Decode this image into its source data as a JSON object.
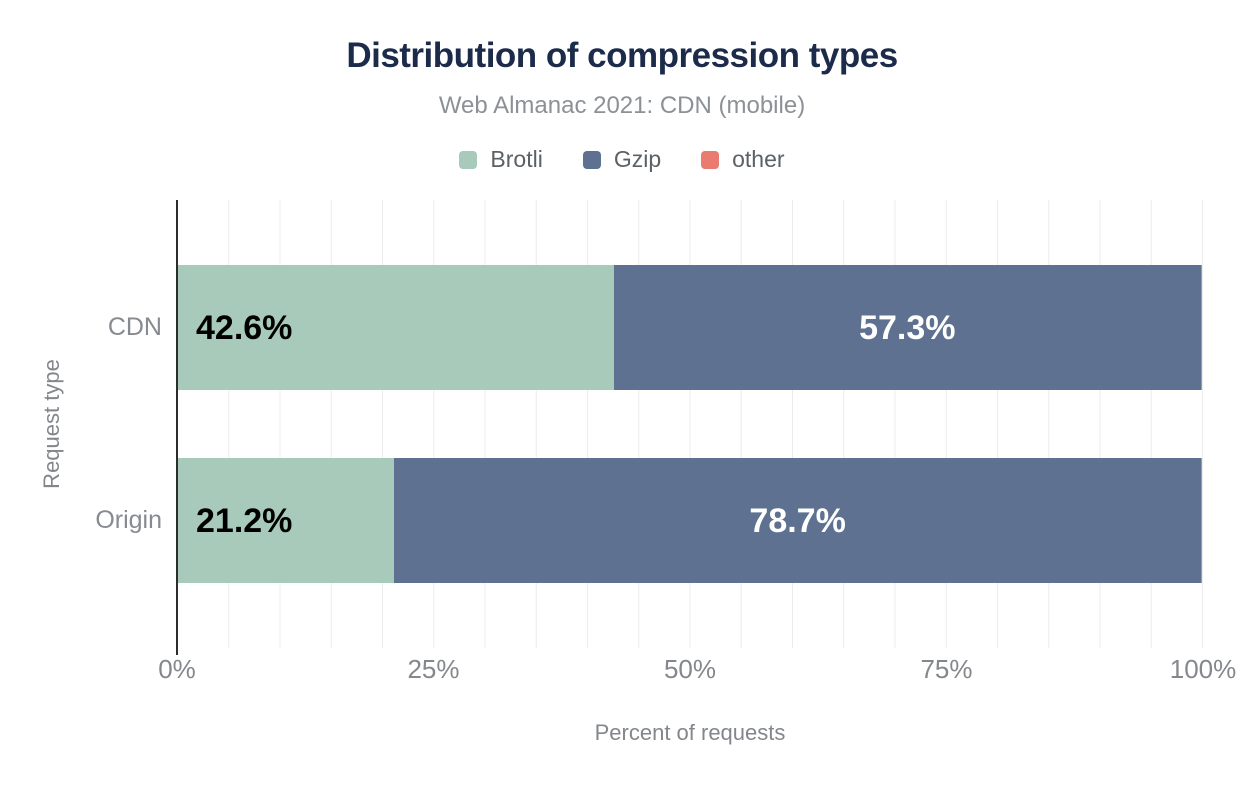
{
  "page": {
    "background": "#ffffff"
  },
  "chart_data": {
    "type": "bar",
    "orientation": "horizontal",
    "stacked": true,
    "title": "Distribution of compression types",
    "subtitle": "Web Almanac 2021: CDN (mobile)",
    "xlabel": "Percent of requests",
    "ylabel": "Request type",
    "xlim": [
      0,
      100
    ],
    "xticks": [
      {
        "value": 0,
        "label": "0%"
      },
      {
        "value": 25,
        "label": "25%"
      },
      {
        "value": 50,
        "label": "50%"
      },
      {
        "value": 75,
        "label": "75%"
      },
      {
        "value": 100,
        "label": "100%"
      }
    ],
    "grid": {
      "vertical_step_percent": 5,
      "color": "#ececec",
      "axis_line_color": "#2d2d2d"
    },
    "legend_position": "top-center",
    "categories": [
      "CDN",
      "Origin"
    ],
    "series": [
      {
        "name": "Brotli",
        "color": "#a7cabb",
        "values": [
          42.6,
          21.2
        ],
        "labels": [
          "42.6%",
          "21.2%"
        ],
        "label_color": "#000000",
        "label_position": "inside-start"
      },
      {
        "name": "Gzip",
        "color": "#5e7190",
        "values": [
          57.3,
          78.7
        ],
        "labels": [
          "57.3%",
          "78.7%"
        ],
        "label_color": "#ffffff",
        "label_position": "inside-center"
      },
      {
        "name": "other",
        "color": "#e97b70",
        "values": [
          0.1,
          0.1
        ],
        "labels": [
          "",
          ""
        ],
        "label_color": "#000000",
        "label_position": "none"
      }
    ],
    "text_colors": {
      "title": "#1c2b4a",
      "subtitle": "#8c9196",
      "axis": "#83878c",
      "tick": "#84888d",
      "category": "#868b91",
      "legend": "#5c6166"
    }
  }
}
